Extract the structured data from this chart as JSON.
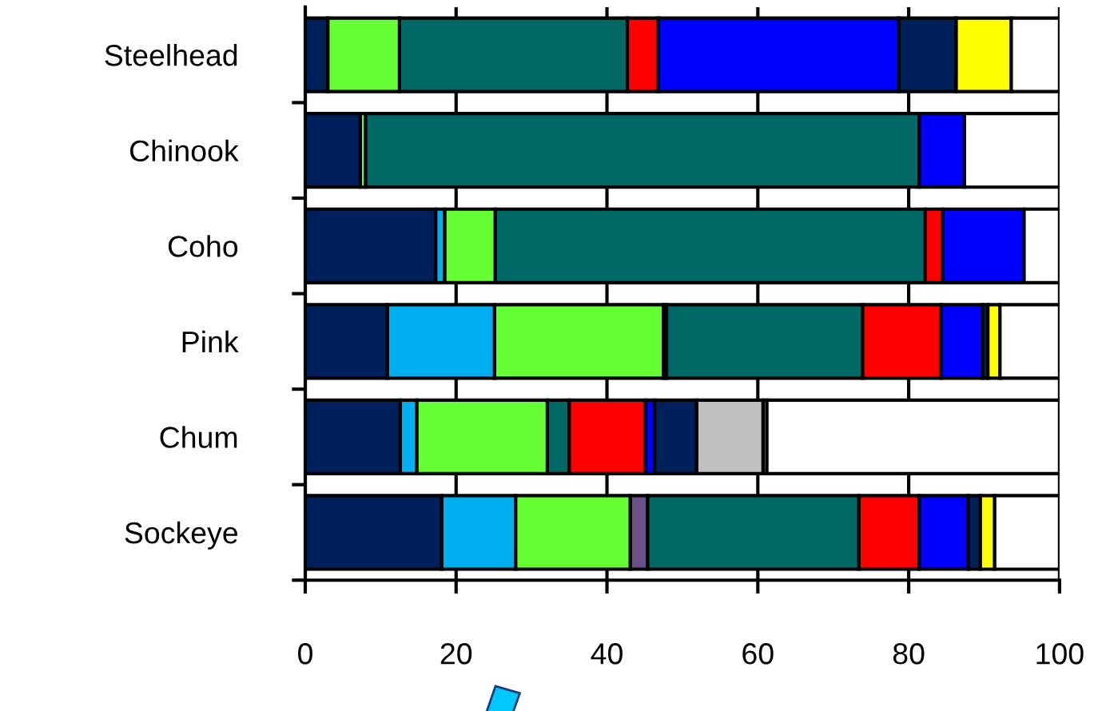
{
  "chart_data": {
    "type": "bar",
    "orientation": "horizontal",
    "stacked": true,
    "categories": [
      "Steelhead",
      "Chinook",
      "Coho",
      "Pink",
      "Chum",
      "Sockeye"
    ],
    "series": [
      {
        "color": "#00205b",
        "values": [
          3.0,
          7.3,
          17.3,
          10.9,
          12.6,
          18.1
        ]
      },
      {
        "color": "#00b0f0",
        "values": [
          null,
          null,
          1.2,
          14.2,
          2.2,
          9.8
        ]
      },
      {
        "color": "#66ff33",
        "values": [
          9.5,
          0.7,
          6.7,
          22.4,
          17.3,
          15.2
        ]
      },
      {
        "color": "#6b4f8a",
        "values": [
          null,
          null,
          null,
          0.4,
          null,
          2.3
        ]
      },
      {
        "color": "#006966",
        "values": [
          30.2,
          73.4,
          57.0,
          26.0,
          2.9,
          28.0
        ]
      },
      {
        "color": "#ff0000",
        "values": [
          4.1,
          null,
          2.3,
          10.4,
          10.1,
          8.0
        ]
      },
      {
        "color": "#0000ff",
        "values": [
          31.9,
          6.0,
          10.8,
          5.5,
          1.2,
          6.5
        ]
      },
      {
        "color": "#00205b",
        "values": [
          7.6,
          null,
          null,
          0.7,
          5.6,
          1.6
        ]
      },
      {
        "color": "#c0c0c0",
        "values": [
          null,
          null,
          null,
          null,
          8.8,
          null
        ]
      },
      {
        "color": "#ffff00",
        "values": [
          7.3,
          null,
          null,
          1.6,
          0.5,
          1.9
        ]
      },
      {
        "color": "#ffffff",
        "values": [
          6.4,
          12.6,
          4.7,
          7.9,
          38.8,
          8.6
        ]
      }
    ],
    "xlim": [
      0,
      100
    ],
    "xticks": [
      0,
      20,
      40,
      60,
      80,
      100
    ],
    "grid": "x",
    "legend": false
  }
}
